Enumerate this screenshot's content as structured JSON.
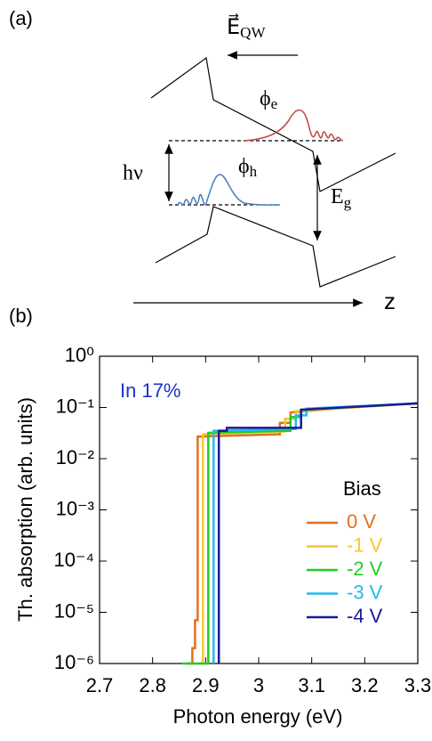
{
  "diagram": {
    "panel_label": "(a)",
    "field": {
      "symbol": "E⃗",
      "subscript": "QW"
    },
    "electron": {
      "symbol": "ϕ",
      "subscript": "e"
    },
    "hole": {
      "symbol": "ϕ",
      "subscript": "h"
    },
    "photon": "hν",
    "gap": {
      "symbol": "E",
      "subscript": "g"
    },
    "axis": "z"
  },
  "chart_data": {
    "type": "line",
    "panel_label": "(b)",
    "annotation": "In 17%",
    "xlabel": "Photon energy (eV)",
    "ylabel": "Th. absorption (arb. units)",
    "xlim": [
      2.7,
      3.3
    ],
    "xticks": [
      2.7,
      2.8,
      2.9,
      3,
      3.1,
      3.2,
      3.3
    ],
    "ylim": [
      1e-06,
      1
    ],
    "yscale": "log",
    "yticks": [
      {
        "value": 1e-06,
        "label": "10⁻⁶"
      },
      {
        "value": 1e-05,
        "label": "10⁻⁵"
      },
      {
        "value": 0.0001,
        "label": "10⁻⁴"
      },
      {
        "value": 0.001,
        "label": "10⁻³"
      },
      {
        "value": 0.01,
        "label": "10⁻²"
      },
      {
        "value": 0.1,
        "label": "10⁻¹"
      },
      {
        "value": 1,
        "label": "10⁰"
      }
    ],
    "legend_title": "Bias",
    "series": [
      {
        "name": "0 V",
        "color": "#e07020",
        "x": [
          2.865,
          2.875,
          2.875,
          2.88,
          2.88,
          2.885,
          2.885,
          3.04,
          3.04,
          3.06,
          3.06,
          3.17,
          3.3
        ],
        "values": [
          1e-06,
          1e-06,
          2e-06,
          2e-06,
          7e-06,
          7e-06,
          0.027,
          0.03,
          0.05,
          0.05,
          0.08,
          0.1,
          0.12
        ]
      },
      {
        "name": "-1 V",
        "color": "#f5c830",
        "x": [
          2.885,
          2.895,
          2.895,
          3.05,
          3.05,
          3.07,
          3.07,
          3.18,
          3.3
        ],
        "values": [
          1e-06,
          1e-06,
          0.03,
          0.034,
          0.06,
          0.06,
          0.085,
          0.1,
          0.12
        ]
      },
      {
        "name": "-2 V",
        "color": "#22cc22",
        "x": [
          2.855,
          2.905,
          2.905,
          3.06,
          3.06,
          3.08,
          3.08,
          3.3
        ],
        "values": [
          1e-06,
          1e-06,
          0.032,
          0.035,
          0.065,
          0.065,
          0.09,
          0.12
        ]
      },
      {
        "name": "-3 V",
        "color": "#22bbee",
        "x": [
          2.915,
          2.915,
          3.07,
          3.07,
          3.09,
          3.09,
          3.3
        ],
        "values": [
          1e-06,
          0.035,
          0.038,
          0.07,
          0.07,
          0.095,
          0.12
        ]
      },
      {
        "name": "-4 V",
        "color": "#1a1a99",
        "x": [
          2.925,
          2.925,
          2.94,
          2.94,
          3.08,
          3.08,
          3.3
        ],
        "values": [
          1e-06,
          0.035,
          0.035,
          0.04,
          0.04,
          0.09,
          0.12
        ]
      }
    ]
  }
}
